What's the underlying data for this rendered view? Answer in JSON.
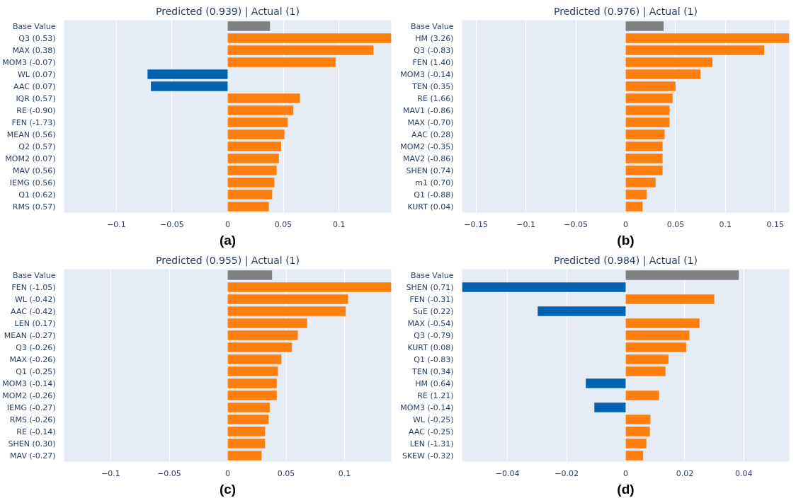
{
  "chart_data": [
    {
      "type": "bar",
      "orientation": "horizontal",
      "title": "Predicted (0.939) | Actual (1)",
      "annotations": [
        "(a)"
      ],
      "categories": [
        "Base Value",
        "Q3 (0.53)",
        "MAX (0.38)",
        "MOM3 (-0.07)",
        "WL (0.07)",
        "AAC (0.07)",
        "IQR (0.57)",
        "RE (-0.90)",
        "FEN (-1.73)",
        "MEAN (0.56)",
        "Q2 (0.57)",
        "MOM2 (0.07)",
        "MAV (0.56)",
        "IEMG (0.56)",
        "Q1 (0.62)",
        "RMS (0.57)"
      ],
      "values": [
        0.038,
        0.147,
        0.131,
        0.097,
        -0.072,
        -0.069,
        0.065,
        0.059,
        0.054,
        0.051,
        0.048,
        0.046,
        0.044,
        0.042,
        0.04,
        0.037
      ],
      "colors": [
        "#808080",
        "#ff7f0e",
        "#ff7f0e",
        "#ff7f0e",
        "#0062b1",
        "#0062b1",
        "#ff7f0e",
        "#ff7f0e",
        "#ff7f0e",
        "#ff7f0e",
        "#ff7f0e",
        "#ff7f0e",
        "#ff7f0e",
        "#ff7f0e",
        "#ff7f0e",
        "#ff7f0e"
      ],
      "xlim": [
        -0.147,
        0.147
      ],
      "xticks": [
        {
          "value": -0.1,
          "label": "−0.1"
        },
        {
          "value": -0.05,
          "label": "−0.05"
        },
        0,
        0.05,
        0.1
      ],
      "grid": "x"
    },
    {
      "type": "bar",
      "orientation": "horizontal",
      "title": "Predicted (0.976) | Actual (1)",
      "annotations": [
        "(b)"
      ],
      "categories": [
        "Base Value",
        "HM (3.26)",
        "Q3 (-0.83)",
        "FEN (1.40)",
        "MOM3 (-0.14)",
        "TEN (0.35)",
        "RE (1.66)",
        "MAV1 (-0.86)",
        "MAX (-0.70)",
        "AAC (0.28)",
        "MOM2 (-0.35)",
        "MAV2 (-0.86)",
        "SHEN (0.74)",
        "m1 (0.70)",
        "Q1 (-0.88)",
        "KURT (0.04)"
      ],
      "values": [
        0.038,
        0.164,
        0.139,
        0.087,
        0.075,
        0.05,
        0.047,
        0.044,
        0.044,
        0.039,
        0.037,
        0.037,
        0.037,
        0.03,
        0.021,
        0.017
      ],
      "colors": [
        "#808080",
        "#ff7f0e",
        "#ff7f0e",
        "#ff7f0e",
        "#ff7f0e",
        "#ff7f0e",
        "#ff7f0e",
        "#ff7f0e",
        "#ff7f0e",
        "#ff7f0e",
        "#ff7f0e",
        "#ff7f0e",
        "#ff7f0e",
        "#ff7f0e",
        "#ff7f0e",
        "#ff7f0e"
      ],
      "xlim": [
        -0.164,
        0.164
      ],
      "xticks": [
        {
          "value": -0.15,
          "label": "−0.15"
        },
        {
          "value": -0.1,
          "label": "−0.1"
        },
        {
          "value": -0.05,
          "label": "−0.05"
        },
        0,
        0.05,
        0.1,
        0.15
      ],
      "grid": "x"
    },
    {
      "type": "bar",
      "orientation": "horizontal",
      "title": "Predicted (0.955) | Actual (1)",
      "annotations": [
        "(c)"
      ],
      "categories": [
        "Base Value",
        "FEN (-1.05)",
        "WL (-0.42)",
        "AAC (-0.42)",
        "LEN (0.17)",
        "MEAN (-0.27)",
        "Q3 (-0.26)",
        "MAX (-0.26)",
        "Q1 (-0.25)",
        "MOM3 (-0.14)",
        "MOM2 (-0.26)",
        "IEMG (-0.27)",
        "RMS (-0.26)",
        "RE (-0.14)",
        "SHEN (0.30)",
        "MAV (-0.27)"
      ],
      "values": [
        0.038,
        0.14,
        0.103,
        0.101,
        0.068,
        0.06,
        0.055,
        0.046,
        0.043,
        0.042,
        0.042,
        0.036,
        0.035,
        0.032,
        0.032,
        0.029
      ],
      "colors": [
        "#808080",
        "#ff7f0e",
        "#ff7f0e",
        "#ff7f0e",
        "#ff7f0e",
        "#ff7f0e",
        "#ff7f0e",
        "#ff7f0e",
        "#ff7f0e",
        "#ff7f0e",
        "#ff7f0e",
        "#ff7f0e",
        "#ff7f0e",
        "#ff7f0e",
        "#ff7f0e",
        "#ff7f0e"
      ],
      "xlim": [
        -0.14,
        0.14
      ],
      "xticks": [
        {
          "value": -0.1,
          "label": "−0.1"
        },
        {
          "value": -0.05,
          "label": "−0.05"
        },
        0,
        0.05,
        0.1
      ],
      "grid": "x"
    },
    {
      "type": "bar",
      "orientation": "horizontal",
      "title": "Predicted (0.984) | Actual (1)",
      "annotations": [
        "(d)"
      ],
      "categories": [
        "Base Value",
        "SHEN (0.71)",
        "FEN (-0.31)",
        "SuE (0.22)",
        "MAX (-0.54)",
        "Q3 (-0.79)",
        "KURT (0.08)",
        "Q1 (-0.83)",
        "TEN (0.34)",
        "HM (0.64)",
        "RE (1.21)",
        "MOM3 (-0.14)",
        "WL (-0.25)",
        "AAC (-0.25)",
        "LEN (-1.31)",
        "SKEW (-0.32)"
      ],
      "values": [
        0.0383,
        -0.0554,
        0.03,
        -0.0298,
        0.025,
        0.0216,
        0.0205,
        0.0145,
        0.0135,
        -0.0135,
        0.0113,
        -0.0106,
        0.0084,
        0.0082,
        0.007,
        0.0059
      ],
      "colors": [
        "#808080",
        "#0062b1",
        "#ff7f0e",
        "#0062b1",
        "#ff7f0e",
        "#ff7f0e",
        "#ff7f0e",
        "#ff7f0e",
        "#ff7f0e",
        "#0062b1",
        "#ff7f0e",
        "#0062b1",
        "#ff7f0e",
        "#ff7f0e",
        "#ff7f0e",
        "#ff7f0e"
      ],
      "xlim": [
        -0.0554,
        0.0554
      ],
      "xticks": [
        {
          "value": -0.04,
          "label": "−0.04"
        },
        {
          "value": -0.02,
          "label": "−0.02"
        },
        0,
        0.02,
        0.04
      ],
      "grid": "x"
    }
  ]
}
